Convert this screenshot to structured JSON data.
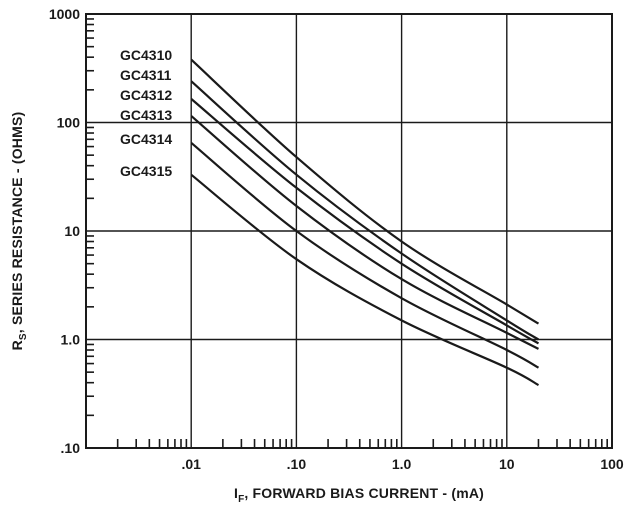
{
  "chart_data": {
    "type": "line",
    "title": "",
    "x_scale": "log",
    "y_scale": "log",
    "xlim": [
      0.001,
      100
    ],
    "ylim": [
      0.1,
      1000
    ],
    "grid": true,
    "xlabel": {
      "pre": "I",
      "sub": "F",
      "post": ", FORWARD BIAS CURRENT - (mA)"
    },
    "ylabel": {
      "pre": "R",
      "sub": "S",
      "post": ", SERIES RESISTANCE - (OHMS)"
    },
    "x_ticks": [
      {
        "value": 0.01,
        "label": ".01"
      },
      {
        "value": 0.1,
        "label": ".10"
      },
      {
        "value": 1,
        "label": "1.0"
      },
      {
        "value": 10,
        "label": "10"
      },
      {
        "value": 100,
        "label": "100"
      }
    ],
    "y_ticks": [
      {
        "value": 0.1,
        "label": ".10"
      },
      {
        "value": 1,
        "label": "1.0"
      },
      {
        "value": 10,
        "label": "10"
      },
      {
        "value": 100,
        "label": "100"
      },
      {
        "value": 1000,
        "label": "1000"
      }
    ],
    "series": [
      {
        "name": "GC4310",
        "x": [
          0.01,
          0.1,
          1,
          10,
          20
        ],
        "y": [
          380,
          48,
          8,
          2.1,
          1.4
        ]
      },
      {
        "name": "GC4311",
        "x": [
          0.01,
          0.1,
          1,
          10,
          20
        ],
        "y": [
          240,
          33,
          6.2,
          1.5,
          1.0
        ]
      },
      {
        "name": "GC4312",
        "x": [
          0.01,
          0.1,
          1,
          10,
          20
        ],
        "y": [
          165,
          25,
          5,
          1.35,
          0.92
        ]
      },
      {
        "name": "GC4313",
        "x": [
          0.01,
          0.1,
          1,
          10,
          20
        ],
        "y": [
          115,
          17,
          3.6,
          1.15,
          0.82
        ]
      },
      {
        "name": "GC4314",
        "x": [
          0.01,
          0.1,
          1,
          10,
          20
        ],
        "y": [
          65,
          10,
          2.4,
          0.8,
          0.55
        ]
      },
      {
        "name": "GC4315",
        "x": [
          0.01,
          0.1,
          1,
          10,
          20
        ],
        "y": [
          33,
          5.5,
          1.5,
          0.55,
          0.38
        ]
      }
    ]
  }
}
